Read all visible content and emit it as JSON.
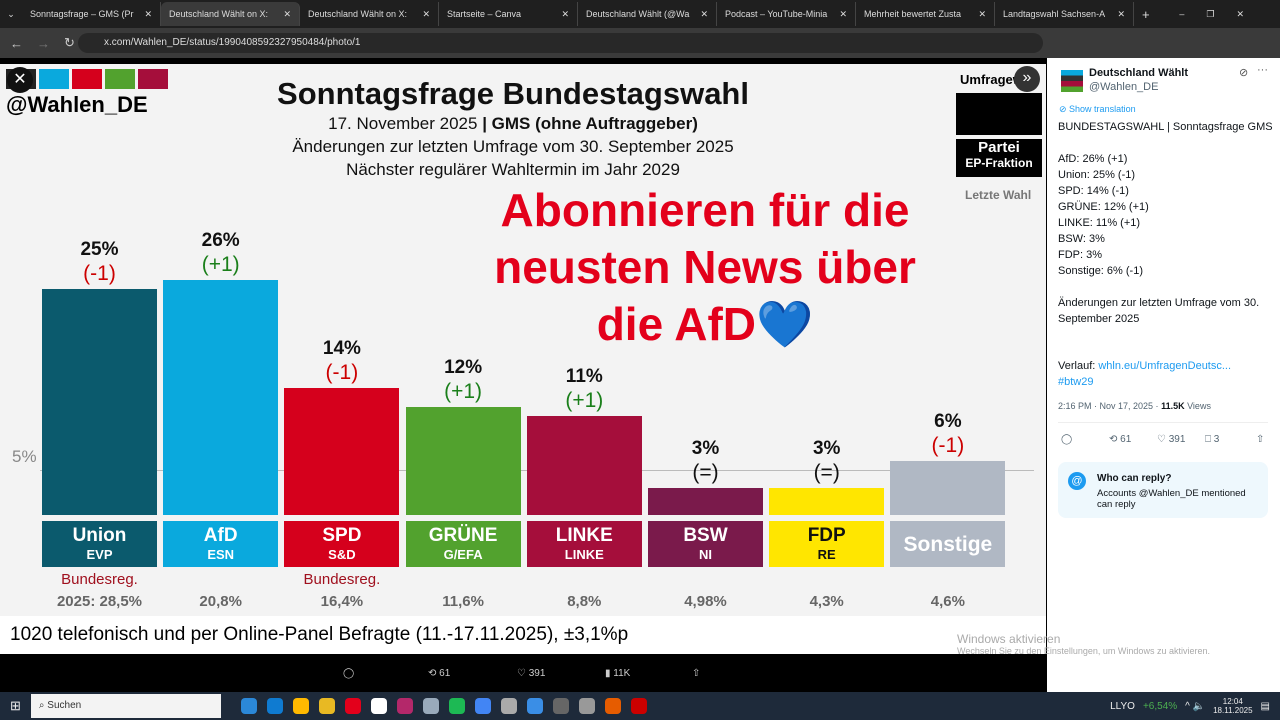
{
  "browser": {
    "tabs": [
      "Sonntagsfrage – GMS (Pr",
      "Deutschland Wählt on X:",
      "Deutschland Wählt on X:",
      "Startseite – Canva",
      "Deutschland Wählt (@Wa",
      "Podcast – YouTube-Minia",
      "Mehrheit bewertet Zusta",
      "Landtagswahl Sachsen-A"
    ],
    "active_tab": 1,
    "url": "x.com/Wahlen_DE/status/1990408592327950484/photo/1"
  },
  "graphic": {
    "handle": "@Wahlen_DE",
    "title": "Sonntagsfrage Bundestagswahl",
    "date_line": "17. November 2025",
    "institute": "GMS (ohne Auftraggeber)",
    "line2": "Änderungen zur letzten Umfrage vom 30. September 2025",
    "line3": "Nächster regulärer Wahltermin im Jahr 2029",
    "overlay": "Abonnieren für die neusten News über die AfD💙",
    "legend": {
      "umfrage": "Umfragew",
      "partei": "Partei",
      "fraktion": "EP-Fraktion",
      "letzte": "Letzte Wahl"
    },
    "threshold": "5%",
    "footer": "1020 telefonisch und per Online-Panel Befragte (11.-17.11.2025), ±3,1%p",
    "gov_label": "Bundesreg."
  },
  "chart_data": {
    "type": "bar",
    "categories": [
      "Union",
      "AfD",
      "SPD",
      "GRÜNE",
      "LINKE",
      "BSW",
      "FDP",
      "Sonstige"
    ],
    "groups": [
      "EVP",
      "ESN",
      "S&D",
      "G/EFA",
      "LINKE",
      "NI",
      "RE",
      ""
    ],
    "values": [
      25,
      26,
      14,
      12,
      11,
      3,
      3,
      6
    ],
    "value_labels": [
      "25%",
      "26%",
      "14%",
      "12%",
      "11%",
      "3%",
      "3%",
      "6%"
    ],
    "changes": [
      "(-1)",
      "(+1)",
      "(-1)",
      "(+1)",
      "(+1)",
      "(=)",
      "(=)",
      "(-1)"
    ],
    "last_election": [
      "2025: 28,5%",
      "20,8%",
      "16,4%",
      "11,6%",
      "8,8%",
      "4,98%",
      "4,3%",
      "4,6%"
    ],
    "government": [
      true,
      false,
      true,
      false,
      false,
      false,
      false,
      false
    ],
    "colors": [
      "#0b5a6d",
      "#0aa9dd",
      "#d5001c",
      "#52a22e",
      "#a50e3b",
      "#7a1a4b",
      "#ffe600",
      "#b0b8c4"
    ],
    "ylim": [
      0,
      30
    ],
    "threshold": 5
  },
  "tweet": {
    "name": "Deutschland Wählt",
    "handle": "@Wahlen_DE",
    "translate": "Show translation",
    "lines": [
      "BUNDESTAGSWAHL | Sonntagsfrage GMS",
      "",
      "AfD: 26% (+1)",
      "Union: 25% (-1)",
      "SPD: 14% (-1)",
      "GRÜNE: 12% (+1)",
      "LINKE: 11% (+1)",
      "BSW: 3%",
      "FDP: 3%",
      "Sonstige: 6% (-1)",
      "",
      "Änderungen zur letzten Umfrage vom 30. September 2025"
    ],
    "verlauf": "Verlauf: ",
    "link": "whln.eu/UmfragenDeutsc...",
    "hashtag": "#btw29",
    "time": "2:16 PM · Nov 17, 2025 · ",
    "views": "11.5K",
    "views_label": " Views",
    "retweets": "61",
    "likes": "391",
    "bookmarks": "3",
    "reply_title": "Who can reply?",
    "reply_text": "Accounts @Wahlen_DE mentioned can reply"
  },
  "bottom_bar": {
    "retweets": "61",
    "likes": "391",
    "views": "11K"
  },
  "watermark": {
    "title": "Windows aktivieren",
    "text": "Wechseln Sie zu den Einstellungen, um Windows zu aktivieren."
  },
  "taskbar": {
    "search": "Suchen",
    "stock": "LLYO",
    "stock_change": "+6,54%",
    "time": "12:04",
    "date": "18.11.2025"
  }
}
